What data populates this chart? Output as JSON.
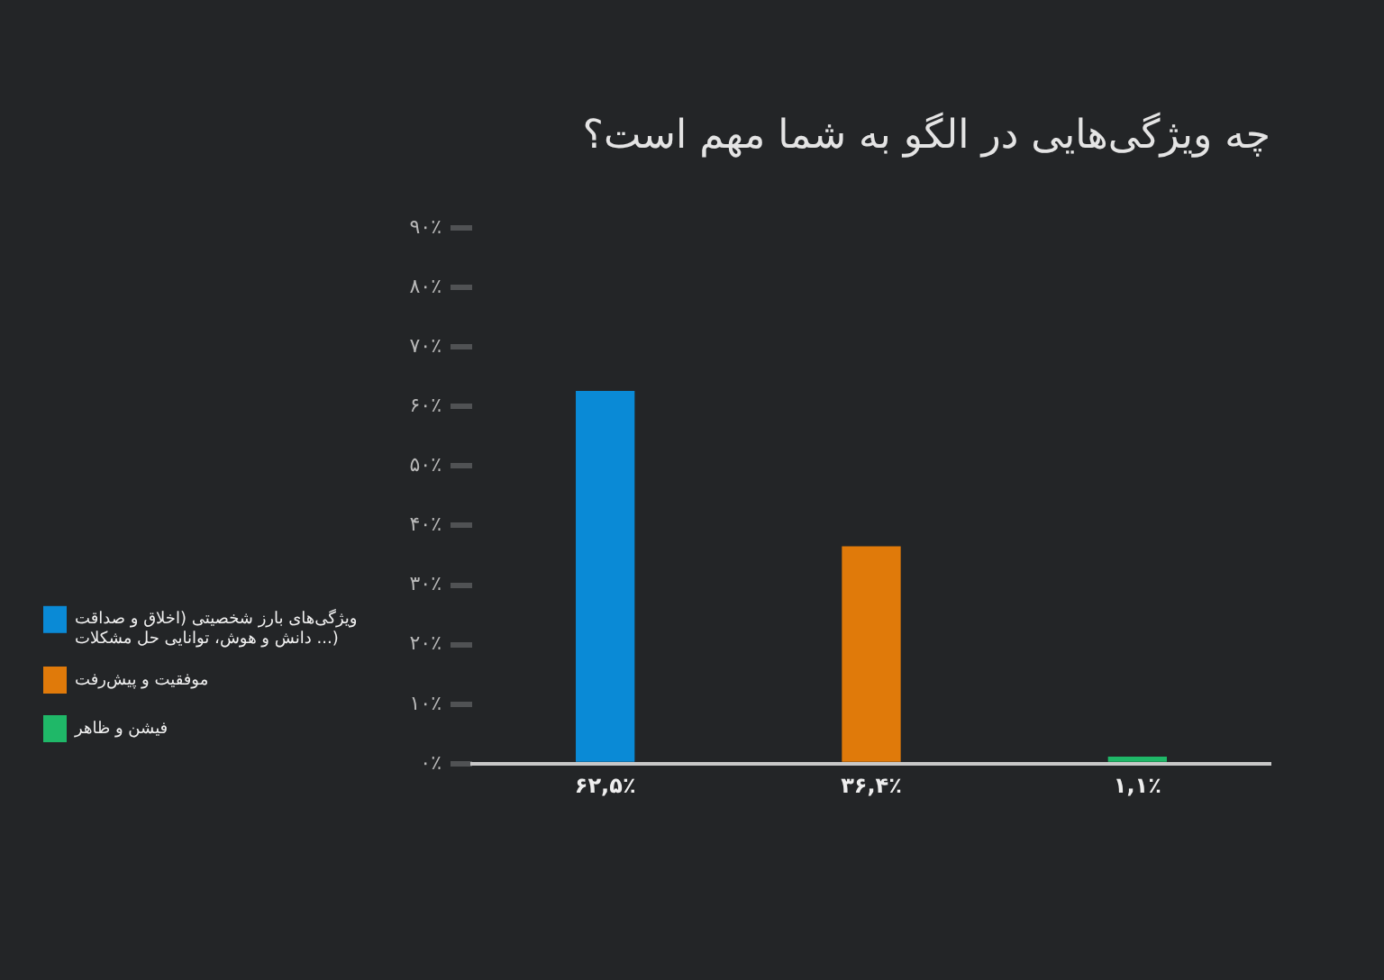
{
  "chart_data": {
    "type": "bar",
    "title": "چه ویژگی‌هایی در الگو به شما مهم است؟",
    "categories": [
      null,
      null,
      null
    ],
    "series": [
      {
        "name": "ویژگی‌های بارز شخصیتی (اخلاق و صداقت دانش و هوش، توانایی حل مشکلات ...)",
        "color": "#0a8ad6",
        "values": [
          62.5,
          null,
          null
        ],
        "value_labels": [
          "۶۲,۵٪",
          null,
          null
        ]
      },
      {
        "name": "موفقیت و پیش‌رفت",
        "color": "#e07a0a",
        "values": [
          null,
          36.4,
          null
        ],
        "value_labels": [
          null,
          "۳۶,۴٪",
          null
        ]
      },
      {
        "name": "فیشن و ظاهر",
        "color": "#1fb868",
        "values": [
          null,
          null,
          1.1
        ],
        "value_labels": [
          null,
          null,
          "۱,۱٪"
        ]
      }
    ],
    "ylim": [
      0,
      90
    ],
    "yticks": [
      {
        "value": 0,
        "label": "۰٪"
      },
      {
        "value": 10,
        "label": "۱۰٪"
      },
      {
        "value": 20,
        "label": "۲۰٪"
      },
      {
        "value": 30,
        "label": "۳۰٪"
      },
      {
        "value": 40,
        "label": "۴۰٪"
      },
      {
        "value": 50,
        "label": "۵۰٪"
      },
      {
        "value": 60,
        "label": "۶۰٪"
      },
      {
        "value": 70,
        "label": "۷۰٪"
      },
      {
        "value": 80,
        "label": "۸۰٪"
      },
      {
        "value": 90,
        "label": "۹۰٪"
      }
    ],
    "grid": false,
    "legend": "left",
    "tick_labels": "y"
  }
}
